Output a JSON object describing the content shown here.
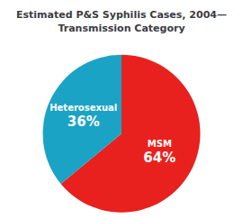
{
  "chart_data": {
    "type": "pie",
    "title": "Estimated P&S Syphilis Cases, 2004—\nTransmission Category",
    "categories": [
      "MSM",
      "Heterosexual"
    ],
    "values": [
      64,
      36
    ],
    "value_labels": [
      "64%",
      "36%"
    ],
    "colors": [
      "#e8211e",
      "#1ba3c6"
    ],
    "data_labels": true
  }
}
